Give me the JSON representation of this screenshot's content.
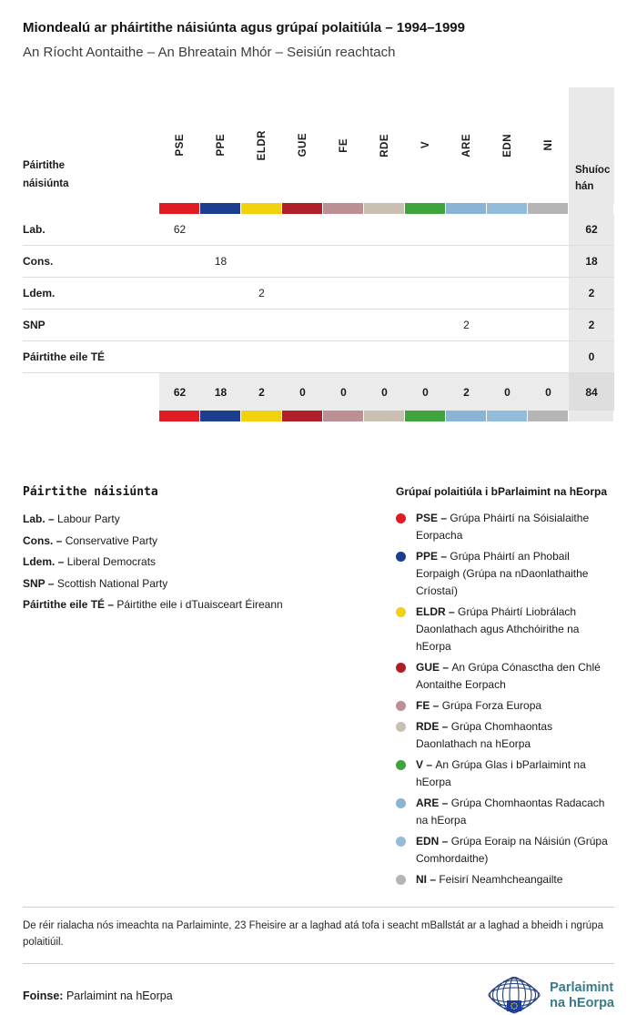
{
  "header": {
    "title": "Miondealú ar pháirtithe náisiúnta agus grúpaí polaitiúla – 1994–1999",
    "subtitle": "An Ríocht Aontaithe – An Bhreatain Mhór – Seisiún reachtach"
  },
  "table": {
    "row_header": "Páirtithe náisiúnta",
    "seats_header": "Shuíochán"
  },
  "groups": [
    {
      "code": "PSE",
      "color": "#e01b22",
      "legend": "Grúpa Pháirtí na Sóisialaithe Eorpacha"
    },
    {
      "code": "PPE",
      "color": "#1c3e8e",
      "legend": "Grúpa Pháirtí an Phobail Eorpaigh (Grúpa na nDaonlathaithe Críostaí)"
    },
    {
      "code": "ELDR",
      "color": "#f2d20f",
      "legend": "Grúpa Pháirtí Liobrálach Daonlathach agus Athchóirithe na hEorpa"
    },
    {
      "code": "GUE",
      "color": "#b01e28",
      "legend": "An Grúpa Cónasctha den Chlé Aontaithe Eorpach"
    },
    {
      "code": "FE",
      "color": "#bc8f94",
      "legend": "Grúpa Forza Europa"
    },
    {
      "code": "RDE",
      "color": "#c9c0b1",
      "legend": "Grúpa Chomhaontas Daonlathach na hEorpa"
    },
    {
      "code": "V",
      "color": "#3fa43c",
      "legend": "An Grúpa Glas i bParlaimint na hEorpa"
    },
    {
      "code": "ARE",
      "color": "#8ab4d4",
      "legend": "Grúpa Chomhaontas Radacach na hEorpa"
    },
    {
      "code": "EDN",
      "color": "#93bcdb",
      "legend": "Grúpa Eoraip na Náisiún (Grúpa Comhordaithe)"
    },
    {
      "code": "NI",
      "color": "#b5b5b5",
      "legend": "Feisirí Neamhcheangailte"
    }
  ],
  "chart_data": {
    "type": "table",
    "title": "Miondealú ar pháirtithe náisiúnta agus grúpaí polaitiúla – 1994–1999",
    "subtitle": "An Ríocht Aontaithe – An Bhreatain Mhór – Seisiún reachtach",
    "columns": [
      "PSE",
      "PPE",
      "ELDR",
      "GUE",
      "FE",
      "RDE",
      "V",
      "ARE",
      "EDN",
      "NI"
    ],
    "rows": [
      {
        "label": "Lab.",
        "values": [
          62,
          null,
          null,
          null,
          null,
          null,
          null,
          null,
          null,
          null
        ],
        "total": 62
      },
      {
        "label": "Cons.",
        "values": [
          null,
          18,
          null,
          null,
          null,
          null,
          null,
          null,
          null,
          null
        ],
        "total": 18
      },
      {
        "label": "Ldem.",
        "values": [
          null,
          null,
          2,
          null,
          null,
          null,
          null,
          null,
          null,
          null
        ],
        "total": 2
      },
      {
        "label": "SNP",
        "values": [
          null,
          null,
          null,
          null,
          null,
          null,
          null,
          2,
          null,
          null
        ],
        "total": 2
      },
      {
        "label": "Páirtithe eile TÉ",
        "values": [
          null,
          null,
          null,
          null,
          null,
          null,
          null,
          null,
          null,
          null
        ],
        "total": 0
      }
    ],
    "column_totals": [
      62,
      18,
      2,
      0,
      0,
      0,
      0,
      2,
      0,
      0
    ],
    "grand_total": 84
  },
  "legend": {
    "parties_title": "Páirtithe náisiúnta",
    "groups_title": "Grúpaí polaitiúla i bParlaimint na hEorpa",
    "separator": "–",
    "parties": [
      {
        "abbr": "Lab.",
        "desc": "Labour Party"
      },
      {
        "abbr": "Cons.",
        "desc": "Conservative Party"
      },
      {
        "abbr": "Ldem.",
        "desc": "Liberal Democrats"
      },
      {
        "abbr": "SNP",
        "desc": "Scottish National Party"
      },
      {
        "abbr": "Páirtithe eile TÉ",
        "desc": "Páirtithe eile i dTuaisceart Éireann"
      }
    ]
  },
  "footer": {
    "footnote": "De réir rialacha nós imeachta na Parlaiminte, 23 Fheisire ar a laghad atá tofa i seacht mBallstát ar a laghad a bheidh i ngrúpa polaitiúil.",
    "source_label": "Foinse:",
    "source_text": "Parlaimint na hEorpa",
    "logo_line1": "Parlaimint",
    "logo_line2": "na hEorpa"
  }
}
